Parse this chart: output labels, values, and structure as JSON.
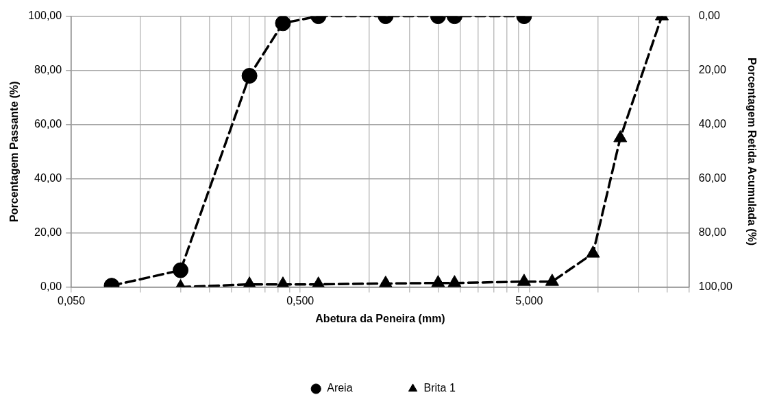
{
  "chart_data": {
    "type": "line",
    "xlabel": "Abetura da Peneira (mm)",
    "ylabel": "Porcentagem Passante (%)",
    "y2label": "Porcentagem Retida Acumulada (%)",
    "log": "x",
    "grid": true,
    "legend": "bottom",
    "xlim": [
      0.05,
      25
    ],
    "xticks": [
      {
        "value": 0.05,
        "label": "0,050"
      },
      {
        "value": 0.1,
        "label": null
      },
      {
        "value": 0.15,
        "label": null
      },
      {
        "value": 0.2,
        "label": null
      },
      {
        "value": 0.25,
        "label": null
      },
      {
        "value": 0.3,
        "label": null
      },
      {
        "value": 0.35,
        "label": null
      },
      {
        "value": 0.4,
        "label": null
      },
      {
        "value": 0.45,
        "label": null
      },
      {
        "value": 0.5,
        "label": "0,500"
      },
      {
        "value": 1,
        "label": null
      },
      {
        "value": 1.5,
        "label": null
      },
      {
        "value": 2,
        "label": null
      },
      {
        "value": 2.5,
        "label": null
      },
      {
        "value": 3,
        "label": null
      },
      {
        "value": 3.5,
        "label": null
      },
      {
        "value": 4,
        "label": null
      },
      {
        "value": 4.5,
        "label": null
      },
      {
        "value": 5,
        "label": "5,000"
      },
      {
        "value": 10,
        "label": null
      },
      {
        "value": 15,
        "label": null
      },
      {
        "value": 20,
        "label": null
      },
      {
        "value": 25,
        "label": null
      }
    ],
    "ylim": [
      0,
      100
    ],
    "yticks": [
      {
        "value": 0,
        "label": "0,00"
      },
      {
        "value": 20,
        "label": "20,00"
      },
      {
        "value": 40,
        "label": "40,00"
      },
      {
        "value": 60,
        "label": "60,00"
      },
      {
        "value": 80,
        "label": "80,00"
      },
      {
        "value": 100,
        "label": "100,00"
      }
    ],
    "y2lim": [
      100,
      0
    ],
    "y2ticks": [
      {
        "value": 0,
        "label": "0,00"
      },
      {
        "value": 20,
        "label": "20,00"
      },
      {
        "value": 40,
        "label": "40,00"
      },
      {
        "value": 60,
        "label": "60,00"
      },
      {
        "value": 80,
        "label": "80,00"
      },
      {
        "value": 100,
        "label": "100,00"
      }
    ],
    "series": [
      {
        "name": "Areia",
        "color": "#000000",
        "marker": "circle",
        "line_style": "dashed",
        "x": [
          0.075,
          0.15,
          0.3,
          0.42,
          0.6,
          1.18,
          2.0,
          2.36,
          4.75
        ],
        "values": [
          0.5,
          6.2,
          78,
          97.4,
          100,
          100,
          100,
          100,
          100
        ]
      },
      {
        "name": "Brita 1",
        "color": "#000000",
        "marker": "triangle",
        "line_style": "dashed",
        "x": [
          0.15,
          0.3,
          0.42,
          0.6,
          1.18,
          2.0,
          2.36,
          4.75,
          6.3,
          9.5,
          12.5,
          19
        ],
        "values": [
          0,
          1,
          1,
          1,
          1.3,
          1.5,
          1.5,
          2,
          2,
          12.4,
          55,
          100
        ]
      }
    ]
  }
}
